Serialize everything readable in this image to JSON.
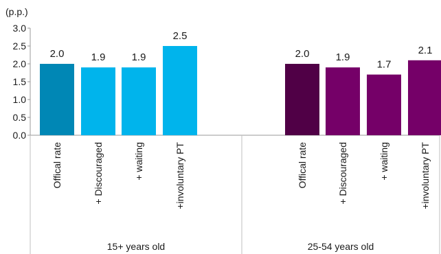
{
  "chart_data": {
    "type": "bar",
    "unit_label": "(p.p.)",
    "ylim": [
      0,
      3.0
    ],
    "yticks": [
      "0.0",
      "0.5",
      "1.0",
      "1.5",
      "2.0",
      "2.5",
      "3.0"
    ],
    "grid": false,
    "legend": "none",
    "groups": [
      {
        "label": "15+ years old",
        "categories": [
          "Offical rate",
          "+ Discouraged",
          "+ waiting",
          "+involuntary PT"
        ],
        "values": [
          2.0,
          1.9,
          1.9,
          2.5
        ],
        "value_labels": [
          "2.0",
          "1.9",
          "1.9",
          "2.5"
        ],
        "colors": [
          "#0087b5",
          "#00b4ec",
          "#00b4ec",
          "#00b4ec"
        ]
      },
      {
        "label": "25-54 years old",
        "categories": [
          "Offical rate",
          "+ Discouraged",
          "+ waiting",
          "+involuntary PT"
        ],
        "values": [
          2.0,
          1.9,
          1.7,
          2.1
        ],
        "value_labels": [
          "2.0",
          "1.9",
          "1.7",
          "2.1"
        ],
        "colors": [
          "#500046",
          "#750068",
          "#750068",
          "#750068"
        ]
      }
    ]
  }
}
